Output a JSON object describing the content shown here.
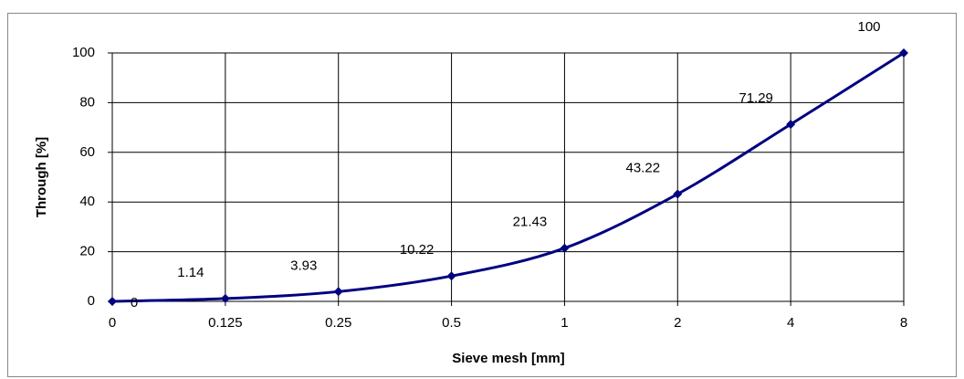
{
  "chart_data": {
    "type": "line",
    "x_label": "Sieve mesh [mm]",
    "y_label": "Through [%]",
    "categories": [
      "0",
      "0.125",
      "0.25",
      "0.5",
      "1",
      "2",
      "4",
      "8"
    ],
    "series": [
      {
        "name": "Through",
        "color": "#000080",
        "values": [
          0,
          1.14,
          3.93,
          10.22,
          21.43,
          43.22,
          71.29,
          100
        ]
      }
    ],
    "ylim": [
      0,
      100
    ],
    "yticks": [
      0,
      20,
      40,
      60,
      80,
      100
    ],
    "grid": true,
    "smooth": true,
    "marker": "diamond",
    "data_labels": true,
    "legend": false
  }
}
